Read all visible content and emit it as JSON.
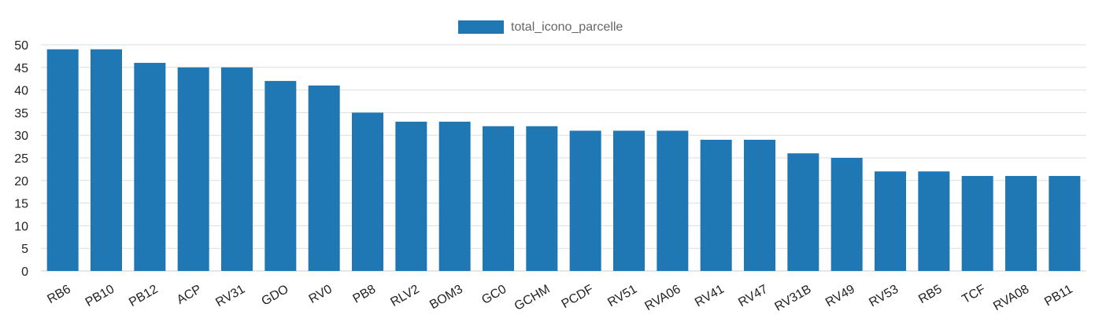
{
  "chart_data": {
    "type": "bar",
    "categories": [
      "RB6",
      "PB10",
      "PB12",
      "ACP",
      "RV31",
      "GDO",
      "RV0",
      "PB8",
      "RLV2",
      "BOM3",
      "GC0",
      "GCHM",
      "PCDF",
      "RV51",
      "RVA06",
      "RV41",
      "RV47",
      "RV31B",
      "RV49",
      "RV53",
      "RB5",
      "TCF",
      "RVA08",
      "PB11"
    ],
    "series": [
      {
        "name": "total_icono_parcelle",
        "values": [
          49,
          49,
          46,
          45,
          45,
          42,
          41,
          35,
          33,
          33,
          32,
          32,
          31,
          31,
          31,
          29,
          29,
          26,
          25,
          22,
          22,
          21,
          21,
          21
        ],
        "color": "#1f77b4"
      }
    ],
    "ylim": [
      0,
      50
    ],
    "yticks": [
      "0",
      "5",
      "10",
      "15",
      "20",
      "25",
      "30",
      "35",
      "40",
      "45",
      "50"
    ],
    "grid": true,
    "legend_position": "top-center"
  }
}
